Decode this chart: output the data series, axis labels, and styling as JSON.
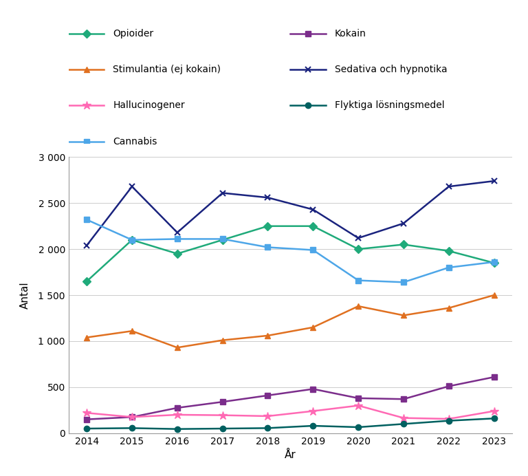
{
  "years": [
    2014,
    2015,
    2016,
    2017,
    2018,
    2019,
    2020,
    2021,
    2022,
    2023
  ],
  "series": {
    "Opioider": [
      1650,
      2100,
      1950,
      2100,
      2250,
      2250,
      2000,
      2050,
      1980,
      1850
    ],
    "Kokain": [
      150,
      175,
      275,
      340,
      410,
      480,
      380,
      370,
      510,
      610
    ],
    "Stimulantia (ej kokain)": [
      1040,
      1110,
      930,
      1010,
      1060,
      1150,
      1380,
      1280,
      1360,
      1500
    ],
    "Sedativa och hypnotika": [
      2040,
      2680,
      2180,
      2610,
      2560,
      2430,
      2120,
      2280,
      2680,
      2740
    ],
    "Hallucinogener": [
      220,
      175,
      200,
      195,
      185,
      240,
      300,
      165,
      155,
      240
    ],
    "Flyktiga lösningsmedel": [
      50,
      55,
      45,
      50,
      55,
      80,
      65,
      100,
      135,
      160
    ],
    "Cannabis": [
      2320,
      2100,
      2110,
      2110,
      2020,
      1990,
      1660,
      1640,
      1800,
      1860
    ]
  },
  "colors": {
    "Opioider": "#1faa7a",
    "Kokain": "#7b2d8b",
    "Stimulantia (ej kokain)": "#e07020",
    "Sedativa och hypnotika": "#1a237e",
    "Hallucinogener": "#ff69b4",
    "Flyktiga lösningsmedel": "#006060",
    "Cannabis": "#4da6e8"
  },
  "markers": {
    "Opioider": "D",
    "Kokain": "s",
    "Stimulantia (ej kokain)": "^",
    "Sedativa och hypnotika": "x",
    "Hallucinogener": "*",
    "Flyktiga lösningsmedel": "o",
    "Cannabis": "s"
  },
  "legend_order": [
    "Opioider",
    "Kokain",
    "Stimulantia (ej kokain)",
    "Sedativa och hypnotika",
    "Hallucinogener",
    "Flyktiga lösningsmedel",
    "Cannabis"
  ],
  "xlabel": "År",
  "ylabel": "Antal",
  "ylim": [
    0,
    3000
  ],
  "yticks": [
    0,
    500,
    1000,
    1500,
    2000,
    2500,
    3000
  ],
  "ytick_labels": [
    "0",
    "500",
    "1 000",
    "1 500",
    "2 000",
    "2 500",
    "3 000"
  ]
}
